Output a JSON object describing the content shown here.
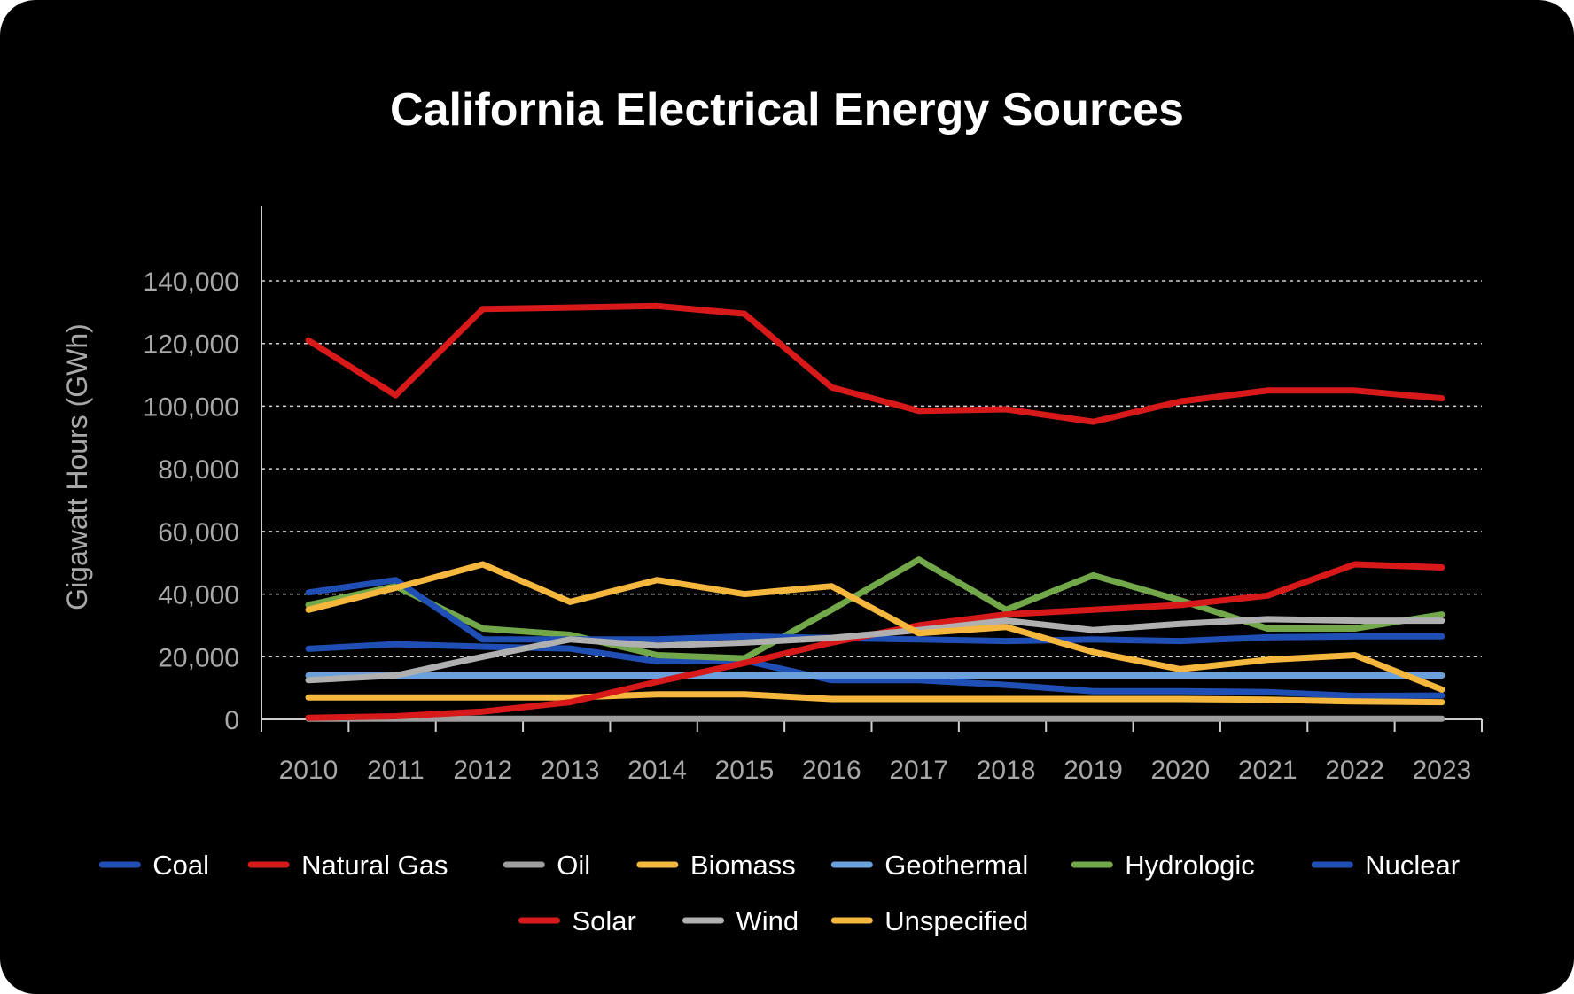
{
  "chart_data": {
    "type": "line",
    "title": "California Electrical Energy Sources",
    "xlabel": "",
    "ylabel": "Gigawatt Hours (GWh)",
    "ylim": [
      0,
      160000
    ],
    "yticks": [
      0,
      20000,
      40000,
      60000,
      80000,
      100000,
      120000,
      140000
    ],
    "ytick_labels": [
      "0",
      "20,000",
      "40,000",
      "60,000",
      "80,000",
      "100,000",
      "120,000",
      "140,000"
    ],
    "grid": true,
    "legend_position": "bottom",
    "categories": [
      "2010",
      "2011",
      "2012",
      "2013",
      "2014",
      "2015",
      "2016",
      "2017",
      "2018",
      "2019",
      "2020",
      "2021",
      "2022",
      "2023"
    ],
    "series": [
      {
        "name": "Coal",
        "color": "#1f4fb4",
        "values": [
          22500,
          24000,
          23200,
          22600,
          18500,
          18800,
          12500,
          12500,
          11000,
          9000,
          9000,
          8700,
          7500,
          7600
        ]
      },
      {
        "name": "Natural Gas",
        "color": "#d81919",
        "values": [
          121000,
          103500,
          131000,
          131500,
          132000,
          129500,
          106000,
          98500,
          99000,
          95000,
          101500,
          105000,
          105000,
          102500
        ]
      },
      {
        "name": "Oil",
        "color": "#9e9e9e",
        "values": [
          200,
          200,
          200,
          200,
          200,
          200,
          200,
          200,
          200,
          200,
          200,
          200,
          200,
          200
        ]
      },
      {
        "name": "Biomass",
        "color": "#f5b73d",
        "values": [
          7000,
          7000,
          7000,
          7000,
          8000,
          8000,
          6500,
          6500,
          6500,
          6500,
          6500,
          6300,
          5700,
          5500
        ]
      },
      {
        "name": "Geothermal",
        "color": "#6aa0dc",
        "values": [
          14000,
          14000,
          14000,
          14000,
          14000,
          14000,
          14000,
          14000,
          14000,
          14000,
          14000,
          14000,
          14000,
          14000
        ]
      },
      {
        "name": "Hydrologic",
        "color": "#72a84a",
        "values": [
          36500,
          42500,
          29000,
          27000,
          20500,
          19500,
          35000,
          51000,
          35000,
          46000,
          38000,
          29000,
          29000,
          33500
        ]
      },
      {
        "name": "Nuclear",
        "color": "#1f4fb4",
        "values": [
          40500,
          44500,
          25500,
          25500,
          25500,
          26500,
          26000,
          25500,
          25000,
          25500,
          25000,
          26200,
          26500,
          26500
        ]
      },
      {
        "name": "Solar",
        "color": "#d81919",
        "values": [
          500,
          1000,
          2500,
          5500,
          12000,
          18000,
          24500,
          30000,
          33500,
          35000,
          36500,
          39500,
          49500,
          48500
        ]
      },
      {
        "name": "Wind",
        "color": "#b0b0b0",
        "values": [
          12500,
          14000,
          20000,
          25500,
          23500,
          24500,
          26000,
          28500,
          31500,
          28500,
          30500,
          32000,
          31500,
          31500
        ]
      },
      {
        "name": "Unspecified",
        "color": "#f5b73d",
        "values": [
          35000,
          42000,
          49500,
          37500,
          44500,
          40000,
          42500,
          27500,
          29500,
          21500,
          16000,
          19000,
          20500,
          9500
        ]
      }
    ]
  }
}
